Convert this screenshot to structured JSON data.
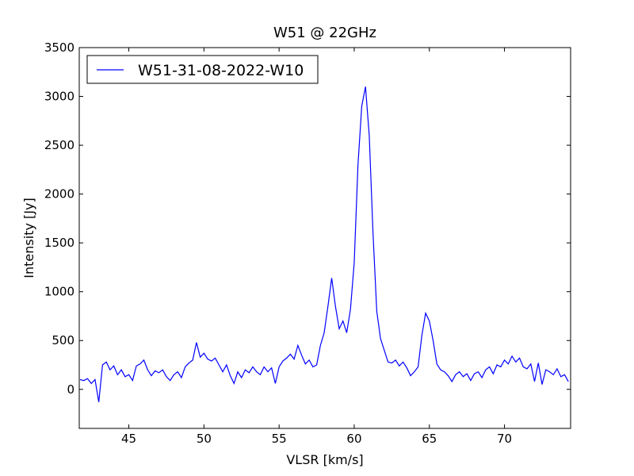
{
  "chart_data": {
    "type": "line",
    "title": "W51 @ 22GHz",
    "xlabel": "VLSR [km/s]",
    "ylabel": "Intensity [Jy]",
    "xlim": [
      41.7,
      74.4
    ],
    "ylim": [
      -400,
      3500
    ],
    "xticks": [
      45,
      50,
      55,
      60,
      65,
      70
    ],
    "yticks": [
      0,
      500,
      1000,
      1500,
      2000,
      2500,
      3000,
      3500
    ],
    "legend": "upper left",
    "grid": false,
    "x": [
      41.75,
      42,
      42.25,
      42.5,
      42.75,
      43,
      43.25,
      43.5,
      43.75,
      44,
      44.25,
      44.5,
      44.75,
      45,
      45.25,
      45.5,
      45.75,
      46,
      46.25,
      46.5,
      46.75,
      47,
      47.25,
      47.5,
      47.75,
      48,
      48.25,
      48.5,
      48.75,
      49,
      49.25,
      49.5,
      49.75,
      50,
      50.25,
      50.5,
      50.75,
      51,
      51.25,
      51.5,
      51.75,
      52,
      52.25,
      52.5,
      52.75,
      53,
      53.25,
      53.5,
      53.75,
      54,
      54.25,
      54.5,
      54.75,
      55,
      55.25,
      55.5,
      55.75,
      56,
      56.25,
      56.5,
      56.75,
      57,
      57.25,
      57.5,
      57.75,
      58,
      58.25,
      58.5,
      58.75,
      59,
      59.25,
      59.5,
      59.75,
      60,
      60.25,
      60.5,
      60.75,
      61,
      61.25,
      61.5,
      61.75,
      62,
      62.25,
      62.5,
      62.75,
      63,
      63.25,
      63.5,
      63.75,
      64,
      64.25,
      64.5,
      64.75,
      65,
      65.25,
      65.5,
      65.75,
      66,
      66.25,
      66.5,
      66.75,
      67,
      67.25,
      67.5,
      67.75,
      68,
      68.25,
      68.5,
      68.75,
      69,
      69.25,
      69.5,
      69.75,
      70,
      70.25,
      70.5,
      70.75,
      71,
      71.25,
      71.5,
      71.75,
      72,
      72.25,
      72.5,
      72.75,
      73,
      73.25,
      73.5,
      73.75,
      74,
      74.25
    ],
    "series": [
      {
        "name": "W51-31-08-2022-W10",
        "color": "#0000ff",
        "values": [
          100,
          90,
          110,
          60,
          100,
          -130,
          250,
          280,
          200,
          240,
          150,
          200,
          130,
          150,
          90,
          240,
          260,
          300,
          200,
          140,
          190,
          170,
          200,
          130,
          90,
          150,
          180,
          120,
          230,
          270,
          300,
          480,
          330,
          370,
          310,
          290,
          320,
          250,
          180,
          250,
          140,
          60,
          180,
          120,
          200,
          170,
          230,
          180,
          150,
          230,
          180,
          220,
          60,
          230,
          290,
          320,
          360,
          310,
          450,
          350,
          260,
          300,
          230,
          250,
          450,
          580,
          850,
          1140,
          850,
          620,
          700,
          580,
          820,
          1300,
          2300,
          2900,
          3100,
          2600,
          1600,
          800,
          520,
          400,
          280,
          270,
          300,
          240,
          280,
          220,
          140,
          180,
          230,
          550,
          780,
          700,
          500,
          260,
          200,
          180,
          140,
          80,
          150,
          180,
          130,
          160,
          90,
          160,
          180,
          120,
          200,
          230,
          160,
          250,
          230,
          300,
          260,
          340,
          280,
          320,
          230,
          210,
          260,
          80,
          270,
          50,
          200,
          180,
          150,
          210,
          130,
          150,
          80
        ]
      }
    ]
  }
}
